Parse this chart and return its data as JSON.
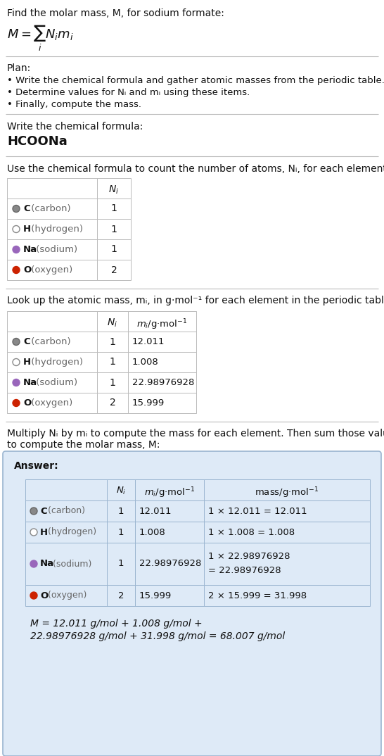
{
  "title": "Find the molar mass, M, for sodium formate:",
  "bg_color": "#ffffff",
  "text_color": "#111111",
  "gray_text": "#666666",
  "line_color": "#bbbbbb",
  "answer_bg": "#deeaf7",
  "answer_edge": "#9ab5d0",
  "plan_header": "Plan:",
  "plan_bullets": [
    "• Write the chemical formula and gather atomic masses from the periodic table.",
    "• Determine values for Nᵢ and mᵢ using these items.",
    "• Finally, compute the mass."
  ],
  "step1_header": "Write the chemical formula:",
  "step1_formula": "HCOONa",
  "step2_header": "Use the chemical formula to count the number of atoms, Nᵢ, for each element:",
  "step3_header": "Look up the atomic mass, mᵢ, in g·mol⁻¹ for each element in the periodic table:",
  "step4_header_l1": "Multiply Nᵢ by mᵢ to compute the mass for each element. Then sum those values",
  "step4_header_l2": "to compute the molar mass, M:",
  "elements": [
    "C (carbon)",
    "H (hydrogen)",
    "Na (sodium)",
    "O (oxygen)"
  ],
  "element_symbols": [
    "C",
    "H",
    "Na",
    "O"
  ],
  "element_rests": [
    " (carbon)",
    " (hydrogen)",
    " (sodium)",
    " (oxygen)"
  ],
  "N_i": [
    "1",
    "1",
    "1",
    "2"
  ],
  "m_i": [
    "12.011",
    "1.008",
    "22.98976928",
    "15.999"
  ],
  "mass_expr_l1": [
    "1 × 12.011 = 12.011",
    "1 × 1.008 = 1.008",
    "1 × 22.98976928",
    "2 × 15.999 = 31.998"
  ],
  "mass_expr_l2": [
    "",
    "",
    "= 22.98976928",
    ""
  ],
  "dot_colors": [
    "#888888",
    "#ffffff",
    "#9966bb",
    "#cc2200"
  ],
  "dot_edges": [
    "#666666",
    "#888888",
    "#9966bb",
    "#cc2200"
  ],
  "answer_label": "Answer:",
  "final_eq_l1": "M = 12.011 g/mol + 1.008 g/mol +",
  "final_eq_l2": "22.98976928 g/mol + 31.998 g/mol = 68.007 g/mol"
}
